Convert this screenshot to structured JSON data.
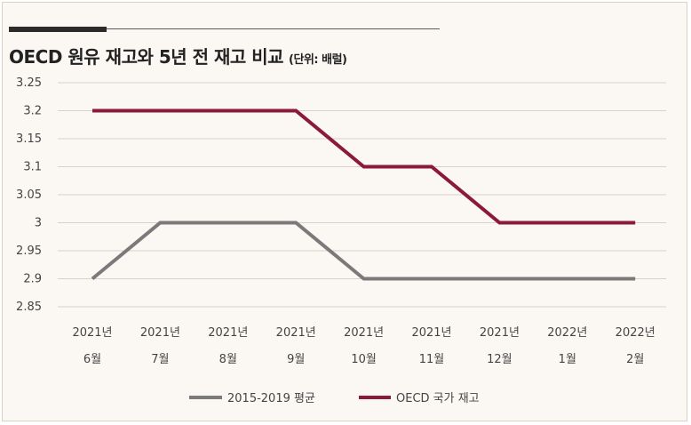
{
  "header": {
    "title": "OECD 원유 재고와 5년 전 재고 비교",
    "unit": "(단위: 배럴)"
  },
  "chart_data": {
    "type": "line",
    "title": "OECD 원유 재고와 5년 전 재고 비교",
    "subtitle": "(단위: 배럴)",
    "categories": [
      [
        "2021년",
        "6월"
      ],
      [
        "2021년",
        "7월"
      ],
      [
        "2021년",
        "8월"
      ],
      [
        "2021년",
        "9월"
      ],
      [
        "2021년",
        "10월"
      ],
      [
        "2021년",
        "11월"
      ],
      [
        "2021년",
        "12월"
      ],
      [
        "2022년",
        "1월"
      ],
      [
        "2022년",
        "2월"
      ]
    ],
    "series": [
      {
        "name": "2015-2019 평균",
        "color": "#7a7a7a",
        "values": [
          2.9,
          3.0,
          3.0,
          3.0,
          2.9,
          2.9,
          2.9,
          2.9,
          2.9
        ]
      },
      {
        "name": "OECD 국가 재고",
        "color": "#8b1a3a",
        "values": [
          3.2,
          3.2,
          3.2,
          3.2,
          3.1,
          3.1,
          3.0,
          3.0,
          3.0
        ]
      }
    ],
    "yticks": [
      "3.25",
      "3.2",
      "3.15",
      "3.1",
      "3.05",
      "3",
      "2.95",
      "2.9",
      "2.85"
    ],
    "ylim": [
      2.85,
      3.25
    ],
    "grid": true,
    "legend_position": "bottom-center",
    "xlabel": "",
    "ylabel": ""
  }
}
